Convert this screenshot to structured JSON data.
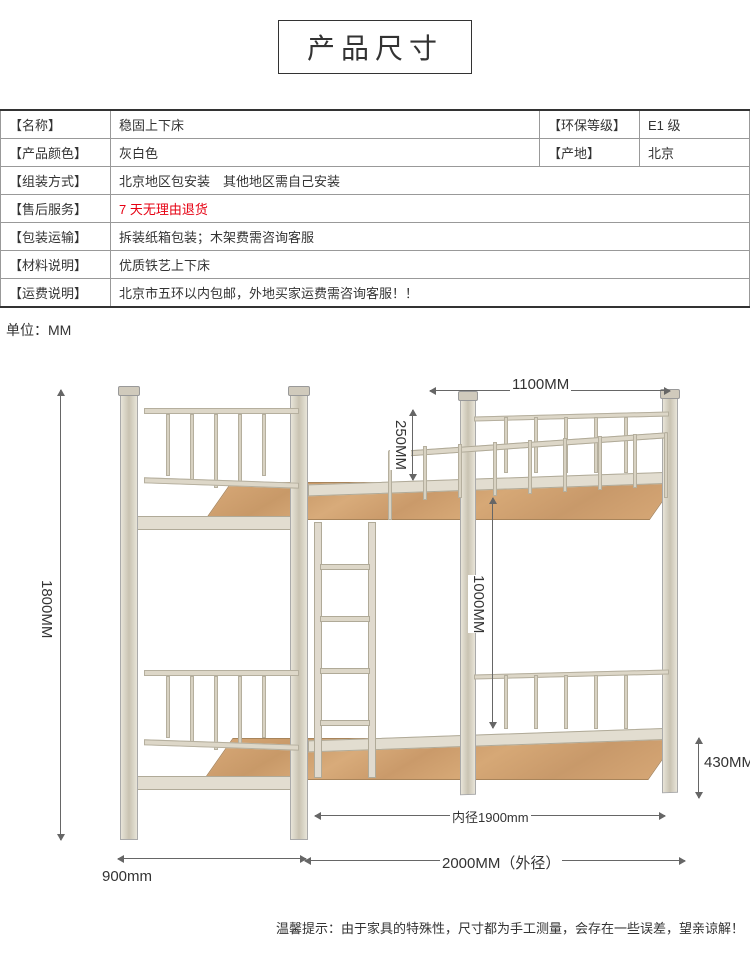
{
  "title": "产品尺寸",
  "unit_label": "单位：MM",
  "spec_rows": [
    {
      "label": "【名称】",
      "value": "稳固上下床",
      "label2": "【环保等级】",
      "value2": "E1 级"
    },
    {
      "label": "【产品颜色】",
      "value": "灰白色",
      "label2": "【产地】",
      "value2": "北京"
    },
    {
      "label": "【组装方式】",
      "value": "北京地区包安装　其他地区需自己安装",
      "full": true
    },
    {
      "label": "【售后服务】",
      "value": "7 天无理由退货",
      "full": true,
      "red": true
    },
    {
      "label": "【包装运输】",
      "value": "拆装纸箱包装；木架费需咨询客服",
      "full": true
    },
    {
      "label": "【材料说明】",
      "value": "优质铁艺上下床",
      "full": true
    },
    {
      "label": "【运费说明】",
      "value": "北京市五环以内包邮，外地买家运费需咨询客服！！",
      "full": true
    }
  ],
  "dimensions": {
    "total_height": "1800MM",
    "guard_height": "250MM",
    "guard_width": "1100MM",
    "bunk_gap": "1000MM",
    "lower_bed_height": "430MM",
    "inner_length": "内径1900mm",
    "outer_length": "2000MM（外径）",
    "width": "900mm"
  },
  "disclaimer": "温馨提示：由于家具的特殊性，尺寸都为手工测量，会存在一些误差，望亲谅解！",
  "colors": {
    "frame": "#e0dace",
    "board": "#d4a574",
    "text": "#333333",
    "red": "#e60012",
    "border": "#999999"
  }
}
